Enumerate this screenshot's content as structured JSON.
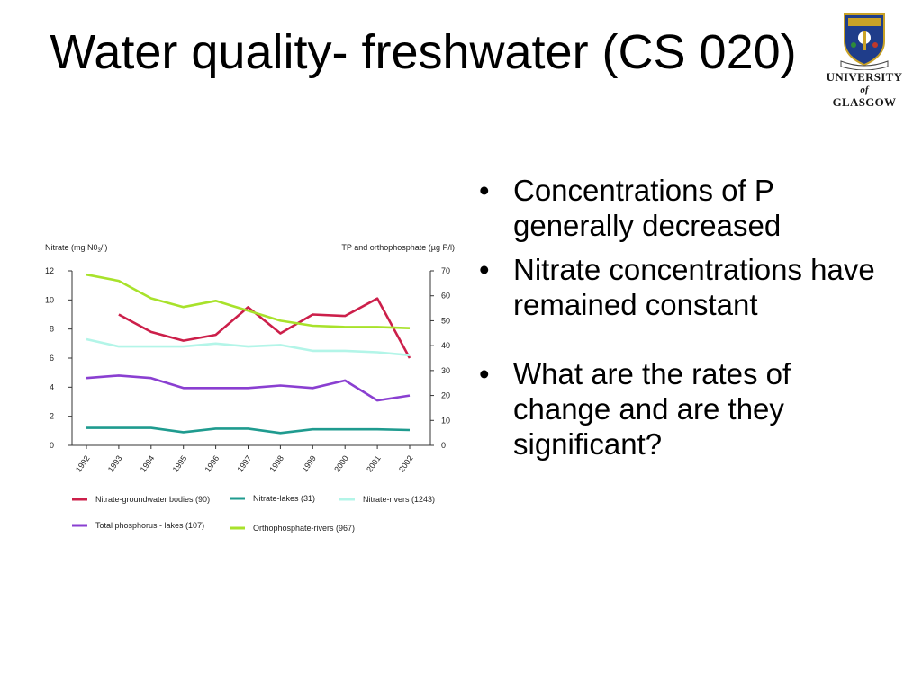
{
  "slide": {
    "title": "Water quality- freshwater (CS 020)",
    "logo": {
      "line1": "UNIVERSITY",
      "line2": "of",
      "line3": "GLASGOW"
    },
    "bullets": [
      "Concentrations of P generally decreased",
      "Nitrate concentrations have remained constant",
      "What are the rates of change and are they significant?"
    ]
  },
  "chart_data": {
    "type": "line",
    "ylabel_left": "Nitrate (mg N0",
    "ylabel_left_sub": "3",
    "ylabel_left_end": "/l)",
    "ylabel_right": "TP and orthophosphate (µg P/l)",
    "categories": [
      "1992",
      "1993",
      "1994",
      "1995",
      "1996",
      "1997",
      "1998",
      "1999",
      "2000",
      "2001",
      "2002"
    ],
    "ylim_left": [
      0,
      12
    ],
    "ylim_right": [
      0,
      70
    ],
    "yticks_left": [
      0,
      2,
      4,
      6,
      8,
      10,
      12
    ],
    "yticks_right": [
      0,
      10,
      20,
      30,
      40,
      50,
      60,
      70
    ],
    "legend_placement": "bottom",
    "series": [
      {
        "name": "Nitrate-groundwater bodies (90)",
        "axis": "left",
        "color": "#cc1f4a",
        "values": [
          null,
          9.0,
          7.8,
          7.2,
          7.6,
          9.5,
          7.7,
          9.0,
          8.9,
          10.1,
          6.0
        ]
      },
      {
        "name": "Nitrate-lakes (31)",
        "axis": "left",
        "color": "#1f9b8f",
        "values": [
          1.2,
          1.2,
          1.2,
          0.9,
          1.15,
          1.15,
          0.85,
          1.1,
          1.1,
          1.1,
          1.05
        ]
      },
      {
        "name": "Nitrate-rivers (1243)",
        "axis": "left",
        "color": "#b3f5e8",
        "values": [
          7.3,
          6.8,
          6.8,
          6.8,
          7.0,
          6.8,
          6.9,
          6.5,
          6.5,
          6.4,
          6.2
        ]
      },
      {
        "name": "Total phosphorus - lakes (107)",
        "axis": "right",
        "color": "#8a3fd1",
        "values": [
          27,
          28,
          27,
          23,
          23,
          23,
          24,
          23,
          26,
          18,
          20
        ]
      },
      {
        "name": "Orthophosphate-rivers (967)",
        "axis": "right",
        "color": "#a8e22b",
        "values": [
          68.5,
          66,
          59,
          55.5,
          58,
          54,
          50,
          48,
          47.5,
          47.5,
          47
        ]
      }
    ]
  }
}
